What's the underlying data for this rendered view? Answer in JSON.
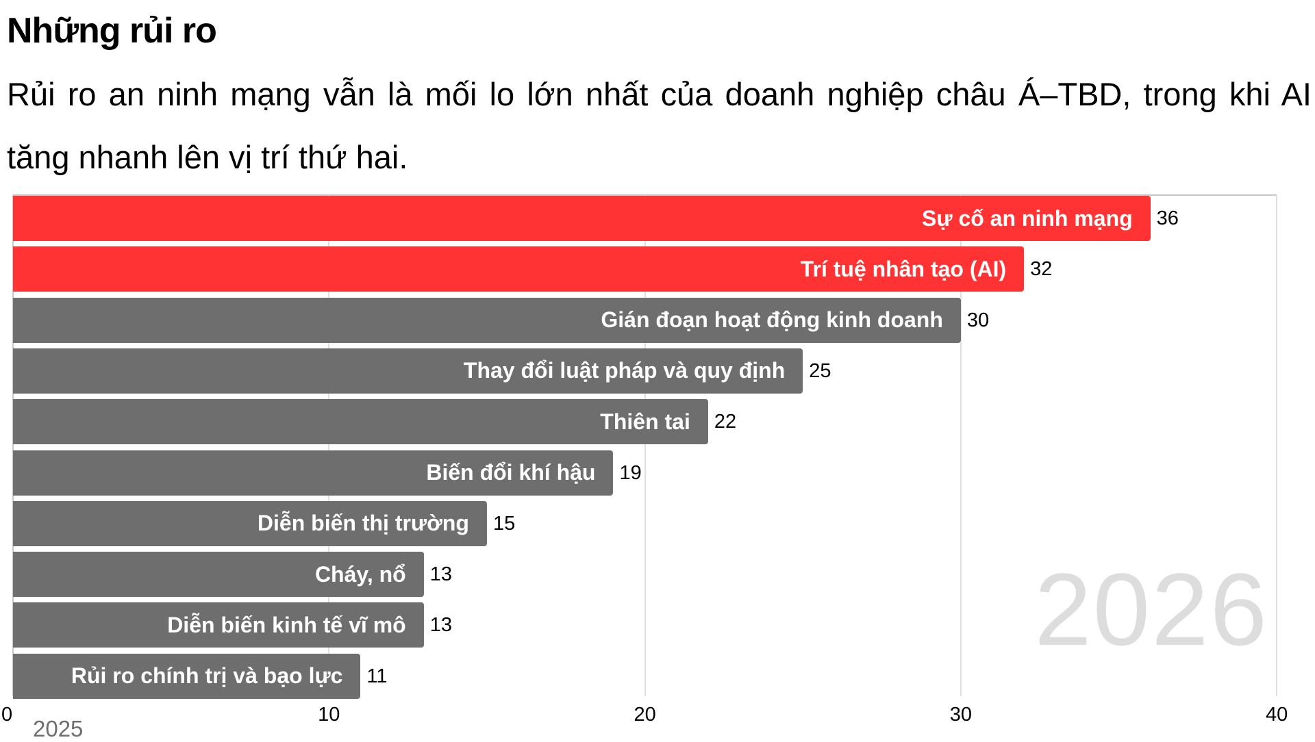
{
  "header": {
    "title": "Những rủi ro",
    "subtitle": "Rủi ro an ninh mạng vẫn là mối lo lớn nhất của doanh nghiệp châu Á–TBD, trong khi AI tăng nhanh lên vị trí thứ hai."
  },
  "colors": {
    "highlight": "#ff3333",
    "default": "#6e6e6e",
    "grid": "#e0e0e0",
    "watermark": "#dddddd"
  },
  "chart_data": {
    "type": "bar",
    "orientation": "horizontal",
    "title": "Những rủi ro",
    "subtitle": "Rủi ro an ninh mạng vẫn là mối lo lớn nhất của doanh nghiệp châu Á–TBD, trong khi AI tăng nhanh lên vị trí thứ hai.",
    "categories": [
      "Sự cố an ninh mạng",
      "Trí tuệ nhân tạo (AI)",
      "Gián đoạn hoạt động kinh doanh",
      "Thay đổi luật pháp và quy định",
      "Thiên tai",
      "Biến đổi khí hậu",
      "Diễn biến thị trường",
      "Cháy, nổ",
      "Diễn biến kinh tế vĩ mô",
      "Rủi ro chính trị và bạo lực"
    ],
    "values": [
      36,
      32,
      30,
      25,
      22,
      19,
      15,
      13,
      13,
      11
    ],
    "highlighted": [
      true,
      true,
      false,
      false,
      false,
      false,
      false,
      false,
      false,
      false
    ],
    "xlim": [
      0,
      40
    ],
    "xticks": [
      "0",
      "10",
      "20",
      "30",
      "40"
    ],
    "grid": true,
    "start_label": "2025",
    "current_label": "2026"
  }
}
